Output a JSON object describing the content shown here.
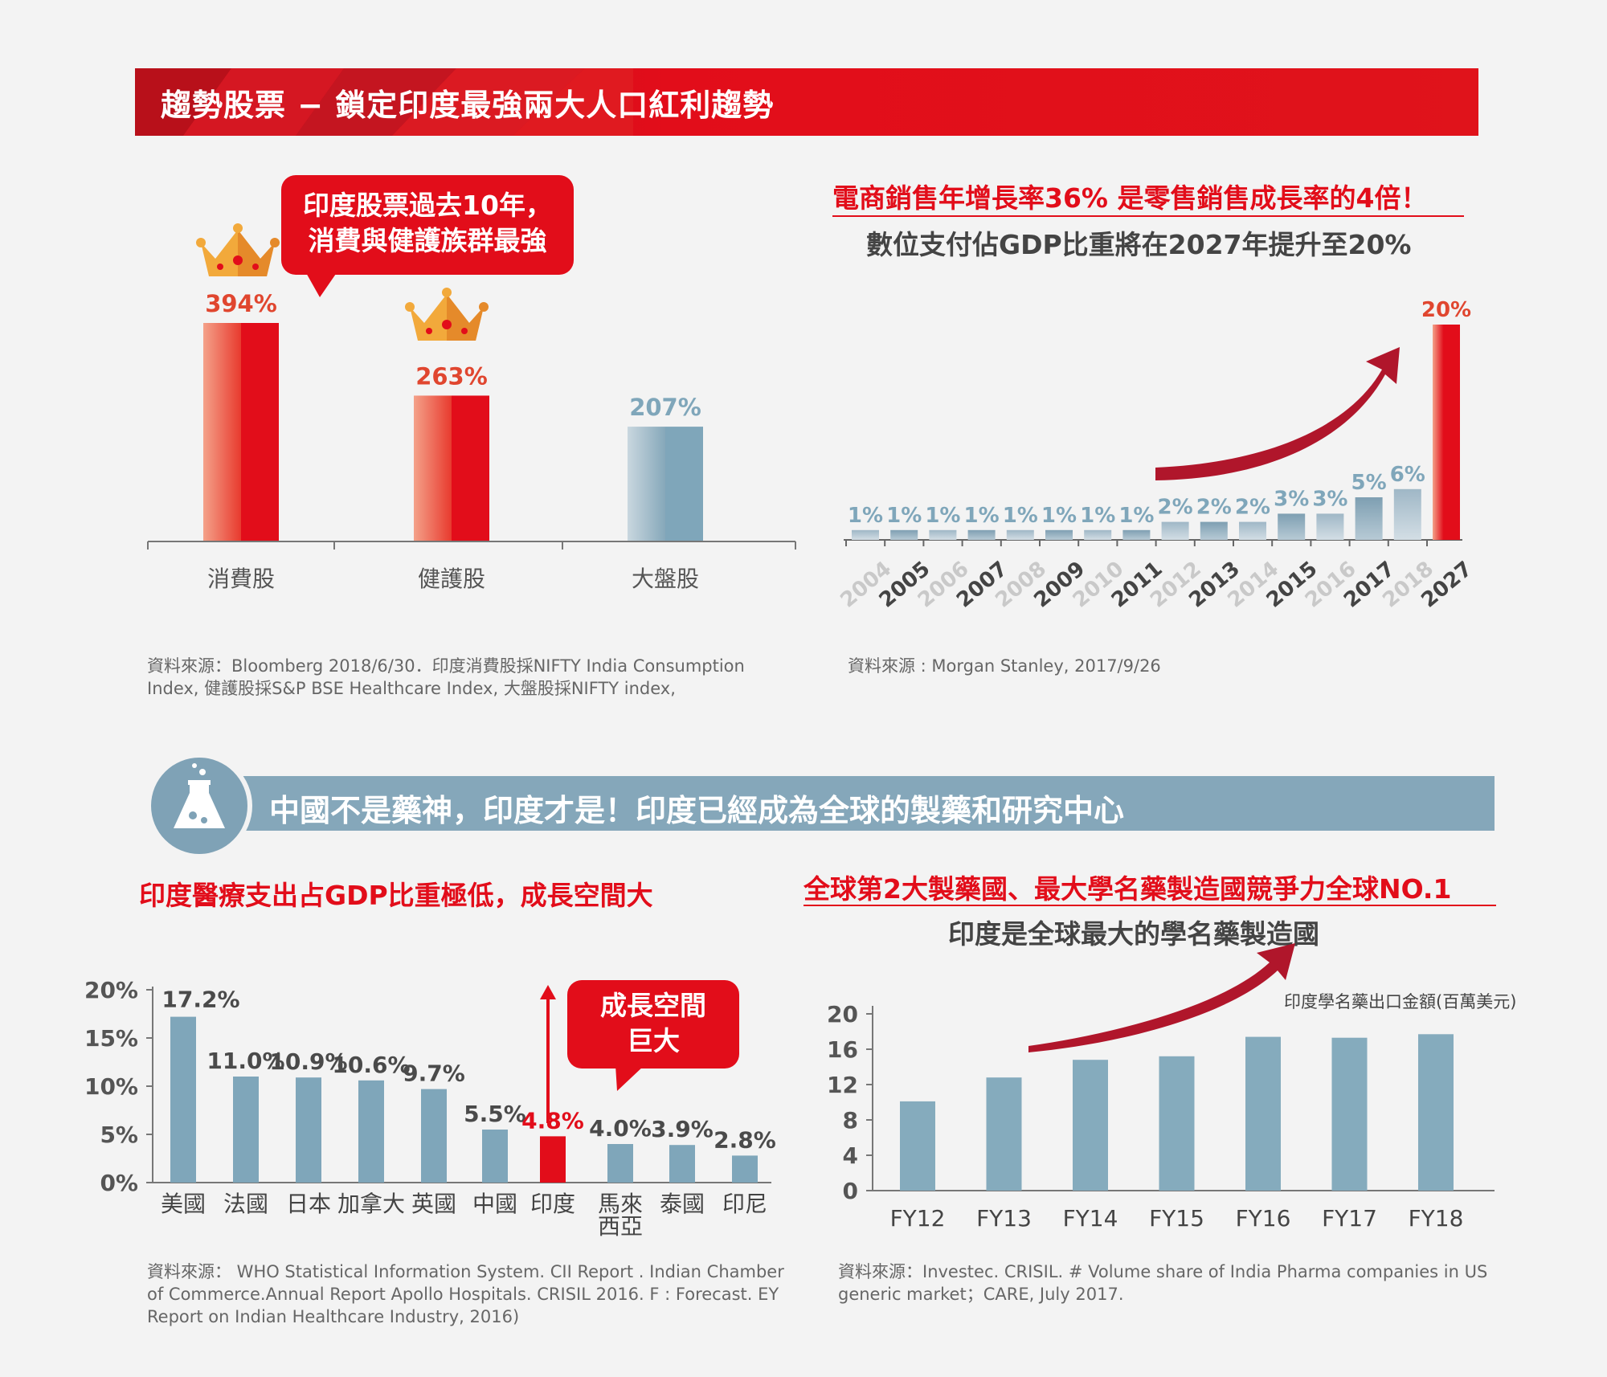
{
  "header": {
    "title": "趨勢股票 − 鎖定印度最強兩大人口紅利趨勢"
  },
  "section1_left": {
    "bubble_line1": "印度股票過去10年，",
    "bubble_line2": "消費與健護族群最強",
    "source_line1": "資料來源：Bloomberg 2018/6/30．印度消費股採NIFTY India Consumption",
    "source_line2": "Index, 健護股採S&P BSE Healthcare Index, 大盤股採NIFTY index,"
  },
  "section1_right": {
    "headline": "電商銷售年增長率36%  是零售銷售成長率的4倍！",
    "subheadline": "數位支付佔GDP比重將在2027年提升至20%",
    "source": "資料來源 : Morgan Stanley, 2017/9/26"
  },
  "section2": {
    "banner_title": "中國不是藥神，印度才是！印度已經成為全球的製藥和研究中心"
  },
  "section2_left": {
    "headline": "印度醫療支出占GDP比重極低，成長空間大",
    "bubble_line1": "成長空間",
    "bubble_line2": "巨大",
    "source_line1": "資料來源：  WHO Statistical Information System. CII Report . Indian Chamber",
    "source_line2": "of Commerce.Annual Report Apollo Hospitals. CRISIL 2016. F : Forecast. EY",
    "source_line3": "Report on Indian Healthcare Industry, 2016)"
  },
  "section2_right": {
    "headline": "全球第2大製藥國、最大學名藥製造國競爭力全球NO.1",
    "subheadline": "印度是全球最大的學名藥製造國",
    "series_label": "印度學名藥出口金額(百萬美元)",
    "source_line1": "資料來源：Investec. CRISIL. # Volume share of India Pharma companies in US",
    "source_line2": "generic market；CARE, July 2017."
  },
  "colors": {
    "red": "#e20d1a",
    "steel_blue": "#7fa6ba",
    "dark_red_arrow": "#b0162b",
    "text_gray": "#555555"
  },
  "icons": [
    "crown-icon",
    "flask-icon",
    "growth-arrow-icon"
  ],
  "chart_data": [
    {
      "type": "bar",
      "categories": [
        "消費股",
        "健護股",
        "大盤股"
      ],
      "values": [
        394,
        263,
        207
      ],
      "value_labels": [
        "394%",
        "263%",
        "207%"
      ],
      "highlight": [
        true,
        true,
        false
      ]
    },
    {
      "type": "bar",
      "categories": [
        "2004",
        "2005",
        "2006",
        "2007",
        "2008",
        "2009",
        "2010",
        "2011",
        "2012",
        "2013",
        "2014",
        "2015",
        "2016",
        "2017",
        "2018",
        "2027"
      ],
      "values": [
        1,
        1,
        1,
        1,
        1,
        1,
        1,
        1,
        2,
        2,
        2,
        3,
        3,
        5,
        6,
        20
      ],
      "value_labels": [
        "1%",
        "1%",
        "1%",
        "1%",
        "1%",
        "1%",
        "1%",
        "1%",
        "2%",
        "2%",
        "2%",
        "3%",
        "3%",
        "5%",
        "6%",
        "20%"
      ]
    },
    {
      "type": "bar",
      "categories": [
        "美國",
        "法國",
        "日本",
        "加拿大",
        "英國",
        "中國",
        "印度",
        "馬來西亞",
        "泰國",
        "印尼"
      ],
      "values": [
        17.2,
        11.0,
        10.9,
        10.6,
        9.7,
        5.5,
        4.8,
        4.0,
        3.9,
        2.8
      ],
      "value_labels": [
        "17.2%",
        "11.0%",
        "10.9%",
        "10.6%",
        "9.7%",
        "5.5%",
        "4.8%",
        "4.0%",
        "3.9%",
        "2.8%"
      ],
      "highlight_category": "印度",
      "yticks": [
        "0%",
        "5%",
        "10%",
        "15%",
        "20%"
      ],
      "ylim": [
        0,
        20
      ]
    },
    {
      "type": "bar",
      "categories": [
        "FY12",
        "FY13",
        "FY14",
        "FY15",
        "FY16",
        "FY17",
        "FY18"
      ],
      "values": [
        10.1,
        12.8,
        14.8,
        15.2,
        17.4,
        17.3,
        17.7
      ],
      "yticks": [
        "0",
        "4",
        "8",
        "12",
        "16",
        "20"
      ],
      "ylim": [
        0,
        20
      ],
      "ylabel": "印度學名藥出口金額(百萬美元)"
    }
  ]
}
